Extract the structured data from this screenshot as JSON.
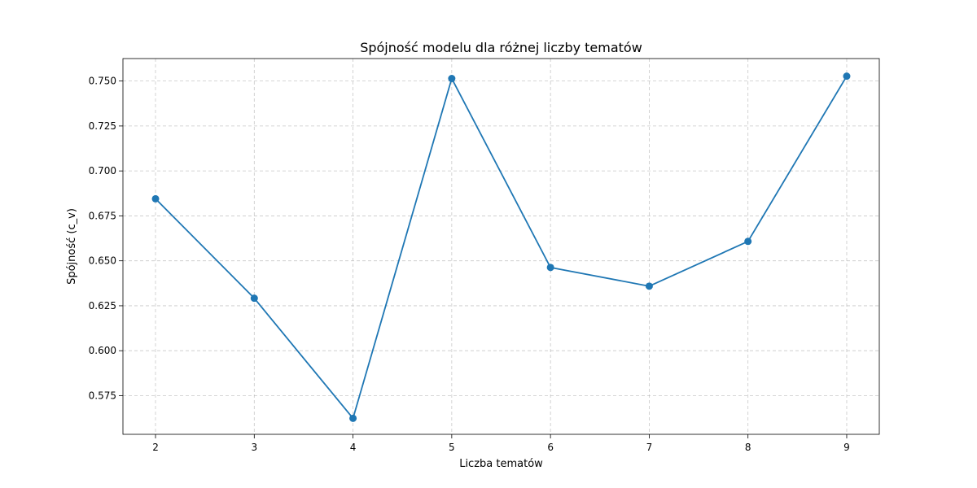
{
  "chart_data": {
    "type": "line",
    "title": "Spójność modelu dla różnej liczby tematów",
    "xlabel": "Liczba tematów",
    "ylabel": "Spójność (c_v)",
    "x": [
      2,
      3,
      4,
      5,
      6,
      7,
      8,
      9
    ],
    "x_tick_labels": [
      "2",
      "3",
      "4",
      "5",
      "6",
      "7",
      "8",
      "9"
    ],
    "xlim": [
      1.67,
      9.33
    ],
    "ylim": [
      0.5535,
      0.7625
    ],
    "y_ticks": [
      0.575,
      0.6,
      0.625,
      0.65,
      0.675,
      0.7,
      0.725,
      0.75
    ],
    "y_tick_labels": [
      "0.575",
      "0.600",
      "0.625",
      "0.650",
      "0.675",
      "0.700",
      "0.725",
      "0.750"
    ],
    "series": [
      {
        "values": [
          0.6845,
          0.6292,
          0.5624,
          0.7514,
          0.6463,
          0.6359,
          0.6608,
          0.7527
        ],
        "color": "#1f77b4",
        "marker": "circle"
      }
    ],
    "grid": true
  }
}
